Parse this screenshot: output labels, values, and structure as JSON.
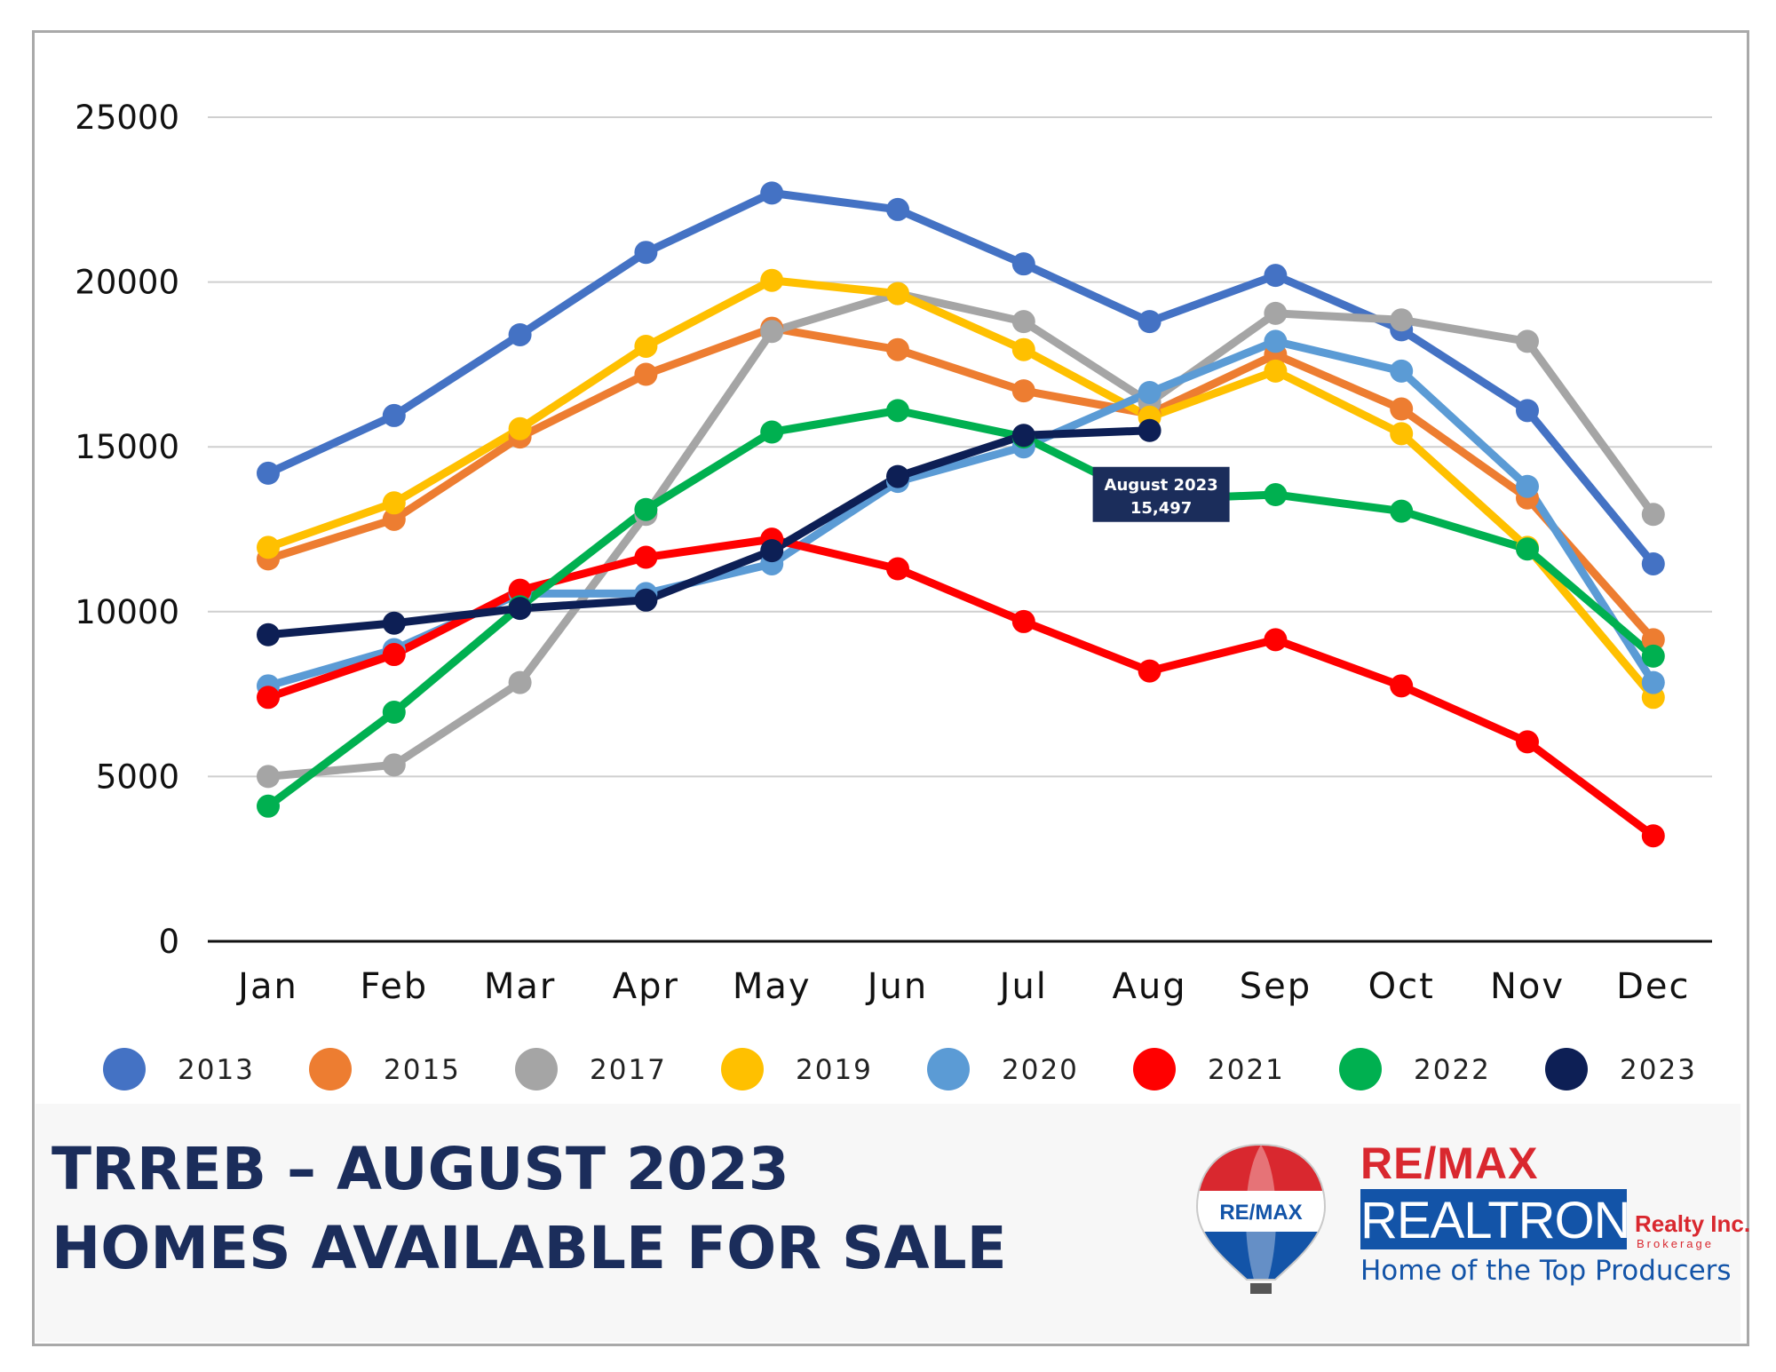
{
  "chart_data": {
    "type": "line",
    "title": "",
    "xlabel": "",
    "ylabel": "",
    "categories": [
      "Jan",
      "Feb",
      "Mar",
      "Apr",
      "May",
      "Jun",
      "Jul",
      "Aug",
      "Sep",
      "Oct",
      "Nov",
      "Dec"
    ],
    "yticks": [
      "0",
      "5000",
      "10000",
      "15000",
      "20000",
      "25000"
    ],
    "ylim": [
      0,
      25000
    ],
    "grid": "horizontal",
    "legend_position": "bottom",
    "series": [
      {
        "name": "2013",
        "color": "#4472c4",
        "values": [
          14200,
          15950,
          18400,
          20900,
          22700,
          22200,
          20550,
          18800,
          20200,
          18550,
          16100,
          11450
        ]
      },
      {
        "name": "2015",
        "color": "#ed7d31",
        "values": [
          11600,
          12800,
          15300,
          17200,
          18600,
          17950,
          16700,
          16000,
          17800,
          16150,
          13450,
          9150
        ]
      },
      {
        "name": "2017",
        "color": "#a5a5a5",
        "values": [
          5000,
          5350,
          7850,
          12950,
          18500,
          19650,
          18800,
          16350,
          19050,
          18850,
          18200,
          12950
        ]
      },
      {
        "name": "2019",
        "color": "#ffc000",
        "values": [
          11950,
          13300,
          15550,
          18050,
          20050,
          19650,
          17950,
          15900,
          17300,
          15400,
          11950,
          7400
        ]
      },
      {
        "name": "2020",
        "color": "#5b9bd5",
        "values": [
          7750,
          8850,
          10550,
          10550,
          11450,
          13950,
          15000,
          16650,
          18200,
          17300,
          13800,
          7850
        ]
      },
      {
        "name": "2021",
        "color": "#ff0000",
        "values": [
          7400,
          8700,
          10650,
          11650,
          12200,
          11300,
          9700,
          8200,
          9150,
          7750,
          6050,
          3200
        ]
      },
      {
        "name": "2022",
        "color": "#00b050",
        "values": [
          4100,
          6950,
          10150,
          13100,
          15450,
          16100,
          15300,
          13400,
          13550,
          13050,
          11900,
          8650
        ]
      },
      {
        "name": "2023",
        "color": "#0d1f55",
        "values": [
          9300,
          9650,
          10100,
          10350,
          11850,
          14100,
          15350,
          15497,
          null,
          null,
          null,
          null
        ]
      }
    ],
    "annotation": {
      "line1": "August 2023",
      "line2": "15,497",
      "category": "Aug",
      "value": 15497
    }
  },
  "footer": {
    "title_line_1": "TRREB – AUGUST 2023",
    "title_line_2": "HOMES AVAILABLE FOR SALE"
  },
  "logo": {
    "balloon_text": "RE/MAX",
    "brand": "RE/MAX",
    "name": "REALTRON",
    "realty": "Realty Inc.",
    "brokerage": "Brokerage",
    "tagline": "Home of the Top Producers",
    "colors": {
      "red": "#d9282f",
      "blue": "#1354a8",
      "navy": "#1b2d5b"
    }
  }
}
